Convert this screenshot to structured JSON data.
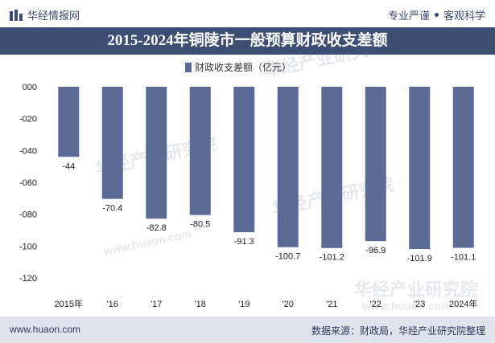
{
  "header": {
    "brand": "华经情报网",
    "tagline_left": "专业严谨",
    "tagline_right": "客观科学",
    "title": "2015-2024年铜陵市一般预算财政收支差额"
  },
  "watermark": {
    "cn": "华经产业研究院",
    "url": "www.huaon.com"
  },
  "footer": {
    "url": "www.huaon.com",
    "source": "数据来源：财政局，华经产业研究院整理"
  },
  "colors": {
    "bar": "#5b6b95",
    "title_bg": "#3e4d73",
    "footer_bg": "#dfe3ec"
  },
  "chart_data": {
    "type": "bar",
    "categories": [
      "2015年",
      "'16",
      "'17",
      "'18",
      "'19",
      "'20",
      "'21",
      "'22",
      "'23",
      "2024年"
    ],
    "series": [
      {
        "name": "财政收支差额（亿元）",
        "values": [
          -44,
          -70.4,
          -82.8,
          -80.5,
          -91.3,
          -100.7,
          -101.2,
          -96.9,
          -101.9,
          -101.1
        ]
      }
    ],
    "value_labels": [
      "-44",
      "-70.4",
      "-82.8",
      "-80.5",
      "-91.3",
      "-100.7",
      "-101.2",
      "-96.9",
      "-101.9",
      "-101.1"
    ],
    "ylim": [
      -120,
      0
    ],
    "yticks": [
      0,
      -20,
      -40,
      -60,
      -80,
      -100,
      -120
    ],
    "ytick_labels": [
      "000",
      "-020",
      "-040",
      "-060",
      "-080",
      "-100",
      "-120"
    ],
    "legend_position": "top-center",
    "grid": false
  }
}
